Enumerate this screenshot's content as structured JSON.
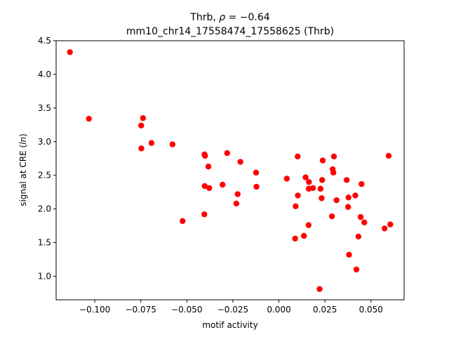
{
  "chart_data": {
    "type": "scatter",
    "title_line1_prefix": "Thrb, ",
    "title_line1_rho": "ρ",
    "title_line1_suffix": " = −0.64",
    "title_line2": "mm10_chr14_17558474_17558625 (Thrb)",
    "xlabel": "motif activity",
    "ylabel_prefix": "signal at CRE (",
    "ylabel_italic": "ln",
    "ylabel_suffix": ")",
    "xlim": [
      -0.121,
      0.068
    ],
    "ylim": [
      0.65,
      4.5
    ],
    "xticks": [
      -0.1,
      -0.075,
      -0.05,
      -0.025,
      0.0,
      0.025,
      0.05
    ],
    "xtick_labels": [
      "−0.100",
      "−0.075",
      "−0.050",
      "−0.025",
      "0.000",
      "0.025",
      "0.050"
    ],
    "yticks": [
      1.0,
      1.5,
      2.0,
      2.5,
      3.0,
      3.5,
      4.0,
      4.5
    ],
    "ytick_labels": [
      "1.0",
      "1.5",
      "2.0",
      "2.5",
      "3.0",
      "3.5",
      "4.0",
      "4.5"
    ],
    "grid": false,
    "marker_color": "#ff0000",
    "points": [
      [
        -0.1135,
        4.33
      ],
      [
        -0.1032,
        3.34
      ],
      [
        -0.0738,
        3.35
      ],
      [
        -0.0748,
        3.24
      ],
      [
        -0.0747,
        2.9
      ],
      [
        -0.0692,
        2.98
      ],
      [
        -0.0578,
        2.96
      ],
      [
        -0.0523,
        1.82
      ],
      [
        -0.0404,
        2.81
      ],
      [
        -0.0401,
        2.79
      ],
      [
        -0.0383,
        2.63
      ],
      [
        -0.0378,
        2.31
      ],
      [
        -0.0403,
        2.34
      ],
      [
        -0.0405,
        1.92
      ],
      [
        -0.0306,
        2.36
      ],
      [
        -0.0281,
        2.83
      ],
      [
        -0.0224,
        2.22
      ],
      [
        -0.0209,
        2.7
      ],
      [
        -0.0231,
        2.08
      ],
      [
        -0.0124,
        2.54
      ],
      [
        -0.0122,
        2.33
      ],
      [
        0.0043,
        2.45
      ],
      [
        0.0102,
        2.78
      ],
      [
        0.0103,
        2.2
      ],
      [
        0.0091,
        2.04
      ],
      [
        0.0088,
        1.56
      ],
      [
        0.0145,
        2.47
      ],
      [
        0.0163,
        2.4
      ],
      [
        0.0162,
        2.3
      ],
      [
        0.0185,
        2.31
      ],
      [
        0.0161,
        1.76
      ],
      [
        0.0136,
        1.6
      ],
      [
        0.0226,
        2.3
      ],
      [
        0.0235,
        2.43
      ],
      [
        0.0238,
        2.72
      ],
      [
        0.0232,
        2.16
      ],
      [
        0.0221,
        0.81
      ],
      [
        0.0292,
        2.59
      ],
      [
        0.0296,
        2.54
      ],
      [
        0.0299,
        2.78
      ],
      [
        0.0313,
        2.13
      ],
      [
        0.0288,
        1.89
      ],
      [
        0.0368,
        2.43
      ],
      [
        0.0378,
        2.17
      ],
      [
        0.0376,
        2.03
      ],
      [
        0.0381,
        1.32
      ],
      [
        0.0415,
        2.2
      ],
      [
        0.0449,
        2.37
      ],
      [
        0.0444,
        1.88
      ],
      [
        0.0464,
        1.8
      ],
      [
        0.0432,
        1.59
      ],
      [
        0.0421,
        1.1
      ],
      [
        0.0596,
        2.79
      ],
      [
        0.0574,
        1.71
      ],
      [
        0.0605,
        1.77
      ]
    ]
  }
}
